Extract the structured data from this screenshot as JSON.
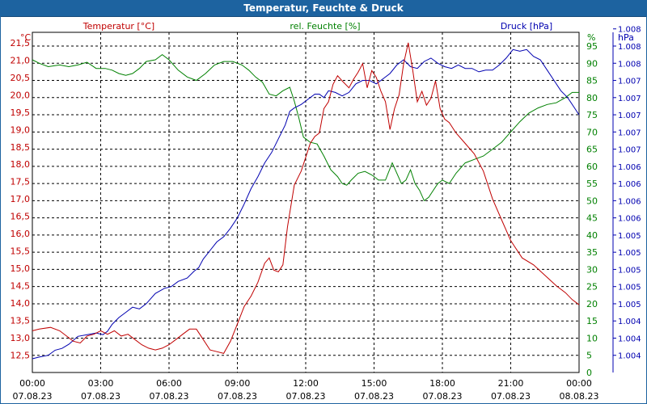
{
  "window": {
    "title": "Temperatur, Feuchte & Druck"
  },
  "colors": {
    "temperature": "#c00000",
    "humidity": "#008000",
    "pressure": "#0000b0",
    "titlebar": "#1d63a0"
  },
  "chart_data": {
    "type": "line",
    "title": "Temperatur, Feuchte & Druck",
    "x_ticks": [
      {
        "time": "00:00",
        "date": "07.08.23"
      },
      {
        "time": "03:00",
        "date": "07.08.23"
      },
      {
        "time": "06:00",
        "date": "07.08.23"
      },
      {
        "time": "09:00",
        "date": "07.08.23"
      },
      {
        "time": "12:00",
        "date": "07.08.23"
      },
      {
        "time": "15:00",
        "date": "07.08.23"
      },
      {
        "time": "18:00",
        "date": "07.08.23"
      },
      {
        "time": "21:00",
        "date": "07.08.23"
      },
      {
        "time": "00:00",
        "date": "08.08.23"
      }
    ],
    "xlim_hours": [
      0,
      24
    ],
    "axes": {
      "temperature": {
        "label": "Temperatur [°C]",
        "unit": "°C",
        "ylim": [
          12.0,
          21.8
        ],
        "ticks": [
          "12,5",
          "13,0",
          "13,5",
          "14,0",
          "14,5",
          "15,0",
          "15,5",
          "16,0",
          "16,5",
          "17,0",
          "17,5",
          "18,0",
          "18,5",
          "19,0",
          "19,5",
          "20,0",
          "20,5",
          "21,0",
          "21,5"
        ]
      },
      "humidity": {
        "label": "rel. Feuchte [%]",
        "unit": "%",
        "ylim": [
          0,
          99
        ],
        "ticks": [
          "0",
          "5",
          "10",
          "15",
          "20",
          "25",
          "30",
          "35",
          "40",
          "45",
          "50",
          "55",
          "60",
          "65",
          "70",
          "75",
          "80",
          "85",
          "90",
          "95"
        ]
      },
      "pressure": {
        "label": "Druck [hPa]",
        "unit": "hPa",
        "ticks": [
          "1.004",
          "1.004",
          "1.004",
          "1.005",
          "1.005",
          "1.005",
          "1.005",
          "1.005",
          "1.006",
          "1.006",
          "1.006",
          "1.006",
          "1.007",
          "1.007",
          "1.007",
          "1.007",
          "1.007",
          "1.008",
          "1.008",
          "1.008"
        ]
      }
    },
    "series": [
      {
        "name": "Temperatur [°C]",
        "axis": "temperature",
        "points": [
          [
            0,
            13.2
          ],
          [
            0.3,
            13.25
          ],
          [
            0.8,
            13.3
          ],
          [
            1.2,
            13.2
          ],
          [
            1.5,
            13.05
          ],
          [
            1.8,
            12.9
          ],
          [
            2.1,
            12.85
          ],
          [
            2.4,
            13.05
          ],
          [
            2.7,
            13.1
          ],
          [
            3.0,
            13.2
          ],
          [
            3.3,
            13.1
          ],
          [
            3.6,
            13.2
          ],
          [
            3.9,
            13.05
          ],
          [
            4.2,
            13.1
          ],
          [
            4.5,
            12.95
          ],
          [
            4.8,
            12.8
          ],
          [
            5.1,
            12.7
          ],
          [
            5.4,
            12.65
          ],
          [
            5.7,
            12.7
          ],
          [
            6.0,
            12.8
          ],
          [
            6.3,
            12.95
          ],
          [
            6.6,
            13.1
          ],
          [
            6.9,
            13.25
          ],
          [
            7.2,
            13.25
          ],
          [
            7.5,
            12.95
          ],
          [
            7.8,
            12.65
          ],
          [
            8.1,
            12.6
          ],
          [
            8.4,
            12.55
          ],
          [
            8.7,
            12.9
          ],
          [
            9.0,
            13.4
          ],
          [
            9.3,
            13.9
          ],
          [
            9.6,
            14.2
          ],
          [
            9.9,
            14.6
          ],
          [
            10.2,
            15.15
          ],
          [
            10.4,
            15.3
          ],
          [
            10.6,
            14.95
          ],
          [
            10.8,
            14.9
          ],
          [
            11.0,
            15.1
          ],
          [
            11.2,
            16.2
          ],
          [
            11.5,
            17.4
          ],
          [
            11.8,
            17.8
          ],
          [
            12.0,
            18.2
          ],
          [
            12.2,
            18.6
          ],
          [
            12.4,
            18.8
          ],
          [
            12.6,
            18.9
          ],
          [
            12.8,
            19.6
          ],
          [
            13.0,
            19.8
          ],
          [
            13.2,
            20.3
          ],
          [
            13.4,
            20.55
          ],
          [
            13.6,
            20.4
          ],
          [
            13.9,
            20.2
          ],
          [
            14.1,
            20.45
          ],
          [
            14.3,
            20.65
          ],
          [
            14.5,
            20.9
          ],
          [
            14.7,
            20.2
          ],
          [
            14.9,
            20.7
          ],
          [
            15.1,
            20.5
          ],
          [
            15.3,
            20.1
          ],
          [
            15.5,
            19.8
          ],
          [
            15.7,
            19.0
          ],
          [
            15.9,
            19.6
          ],
          [
            16.1,
            20.0
          ],
          [
            16.3,
            20.9
          ],
          [
            16.5,
            21.5
          ],
          [
            16.7,
            20.7
          ],
          [
            16.9,
            19.8
          ],
          [
            17.1,
            20.1
          ],
          [
            17.3,
            19.7
          ],
          [
            17.5,
            19.9
          ],
          [
            17.7,
            20.4
          ],
          [
            17.9,
            19.6
          ],
          [
            18.1,
            19.3
          ],
          [
            18.3,
            19.2
          ],
          [
            18.6,
            18.9
          ],
          [
            19.0,
            18.6
          ],
          [
            19.4,
            18.3
          ],
          [
            19.8,
            17.8
          ],
          [
            20.2,
            17.0
          ],
          [
            20.6,
            16.4
          ],
          [
            21.0,
            15.8
          ],
          [
            21.5,
            15.3
          ],
          [
            22.0,
            15.1
          ],
          [
            22.5,
            14.8
          ],
          [
            23.0,
            14.5
          ],
          [
            23.4,
            14.3
          ],
          [
            23.7,
            14.1
          ],
          [
            24.0,
            13.95
          ]
        ]
      },
      {
        "name": "rel. Feuchte [%]",
        "axis": "humidity",
        "points": [
          [
            0,
            91
          ],
          [
            0.3,
            90
          ],
          [
            0.7,
            89
          ],
          [
            1.2,
            89.5
          ],
          [
            1.6,
            89
          ],
          [
            2.0,
            89.5
          ],
          [
            2.4,
            90.3
          ],
          [
            2.8,
            88.5
          ],
          [
            3.2,
            88.5
          ],
          [
            3.5,
            88
          ],
          [
            3.8,
            87
          ],
          [
            4.1,
            86.5
          ],
          [
            4.4,
            87
          ],
          [
            4.7,
            88.5
          ],
          [
            5.0,
            90.5
          ],
          [
            5.4,
            91
          ],
          [
            5.7,
            92.5
          ],
          [
            6.0,
            91
          ],
          [
            6.4,
            88
          ],
          [
            6.8,
            86
          ],
          [
            7.2,
            85
          ],
          [
            7.6,
            87
          ],
          [
            8.0,
            89.5
          ],
          [
            8.4,
            90.5
          ],
          [
            8.8,
            90.5
          ],
          [
            9.2,
            89.5
          ],
          [
            9.5,
            88
          ],
          [
            9.8,
            86
          ],
          [
            10.1,
            84.5
          ],
          [
            10.4,
            81
          ],
          [
            10.7,
            80.5
          ],
          [
            11.0,
            82
          ],
          [
            11.3,
            83
          ],
          [
            11.5,
            79
          ],
          [
            11.7,
            74
          ],
          [
            11.9,
            68.5
          ],
          [
            12.2,
            67
          ],
          [
            12.5,
            66.5
          ],
          [
            12.8,
            63
          ],
          [
            13.1,
            59
          ],
          [
            13.4,
            57
          ],
          [
            13.6,
            55
          ],
          [
            13.8,
            54.5
          ],
          [
            14.0,
            56
          ],
          [
            14.3,
            58
          ],
          [
            14.6,
            58.5
          ],
          [
            14.9,
            57.5
          ],
          [
            15.2,
            56
          ],
          [
            15.5,
            56
          ],
          [
            15.8,
            61
          ],
          [
            16.0,
            58
          ],
          [
            16.2,
            55
          ],
          [
            16.4,
            56
          ],
          [
            16.6,
            59
          ],
          [
            16.8,
            55
          ],
          [
            17.0,
            53
          ],
          [
            17.2,
            50
          ],
          [
            17.4,
            51
          ],
          [
            17.6,
            53
          ],
          [
            17.8,
            55
          ],
          [
            18.0,
            56
          ],
          [
            18.3,
            55
          ],
          [
            18.6,
            58
          ],
          [
            19.0,
            61
          ],
          [
            19.4,
            62
          ],
          [
            19.8,
            63
          ],
          [
            20.2,
            65
          ],
          [
            20.6,
            67
          ],
          [
            21.0,
            70
          ],
          [
            21.4,
            73
          ],
          [
            21.8,
            75.5
          ],
          [
            22.2,
            77
          ],
          [
            22.6,
            78
          ],
          [
            23.0,
            78.5
          ],
          [
            23.4,
            80
          ],
          [
            23.7,
            81.5
          ],
          [
            24.0,
            81.5
          ]
        ]
      },
      {
        "name": "Druck [hPa]",
        "axis": "pressure",
        "points_humidity_scale": [
          [
            0,
            4
          ],
          [
            0.3,
            4.5
          ],
          [
            0.7,
            5
          ],
          [
            1.0,
            6.5
          ],
          [
            1.3,
            7
          ],
          [
            1.6,
            8.2
          ],
          [
            2.0,
            10.5
          ],
          [
            2.4,
            11
          ],
          [
            2.8,
            11.5
          ],
          [
            3.1,
            11
          ],
          [
            3.3,
            12
          ],
          [
            3.5,
            14
          ],
          [
            3.8,
            16
          ],
          [
            4.1,
            17.5
          ],
          [
            4.4,
            19
          ],
          [
            4.7,
            18.5
          ],
          [
            5.0,
            20
          ],
          [
            5.4,
            23
          ],
          [
            5.8,
            24.5
          ],
          [
            6.1,
            25
          ],
          [
            6.4,
            26.5
          ],
          [
            6.8,
            27.5
          ],
          [
            7.1,
            29.5
          ],
          [
            7.3,
            30.5
          ],
          [
            7.5,
            33
          ],
          [
            7.8,
            35.5
          ],
          [
            8.1,
            38
          ],
          [
            8.4,
            39.5
          ],
          [
            8.7,
            42
          ],
          [
            9.0,
            45
          ],
          [
            9.3,
            49
          ],
          [
            9.6,
            53.5
          ],
          [
            9.9,
            57
          ],
          [
            10.2,
            61
          ],
          [
            10.5,
            64
          ],
          [
            10.8,
            68
          ],
          [
            11.1,
            72
          ],
          [
            11.3,
            76
          ],
          [
            11.5,
            77
          ],
          [
            11.8,
            78
          ],
          [
            12.1,
            79.5
          ],
          [
            12.4,
            81
          ],
          [
            12.6,
            81
          ],
          [
            12.8,
            80
          ],
          [
            13.0,
            82
          ],
          [
            13.3,
            81.5
          ],
          [
            13.6,
            80.5
          ],
          [
            13.9,
            81.5
          ],
          [
            14.2,
            84
          ],
          [
            14.5,
            85
          ],
          [
            14.8,
            85
          ],
          [
            15.1,
            84
          ],
          [
            15.4,
            85.5
          ],
          [
            15.7,
            87
          ],
          [
            16.0,
            89.5
          ],
          [
            16.3,
            91
          ],
          [
            16.6,
            89
          ],
          [
            16.9,
            88.5
          ],
          [
            17.2,
            90.5
          ],
          [
            17.5,
            91.5
          ],
          [
            17.8,
            90
          ],
          [
            18.1,
            89
          ],
          [
            18.4,
            88.5
          ],
          [
            18.7,
            89.5
          ],
          [
            19.0,
            88.5
          ],
          [
            19.3,
            88.5
          ],
          [
            19.6,
            87.5
          ],
          [
            19.9,
            88
          ],
          [
            20.2,
            88
          ],
          [
            20.5,
            89.5
          ],
          [
            20.8,
            91.5
          ],
          [
            21.1,
            94
          ],
          [
            21.4,
            93.5
          ],
          [
            21.7,
            94
          ],
          [
            22.0,
            92
          ],
          [
            22.3,
            91
          ],
          [
            22.6,
            88
          ],
          [
            22.9,
            85
          ],
          [
            23.2,
            82
          ],
          [
            23.5,
            80
          ],
          [
            23.8,
            77
          ],
          [
            24.0,
            75
          ]
        ]
      }
    ]
  }
}
